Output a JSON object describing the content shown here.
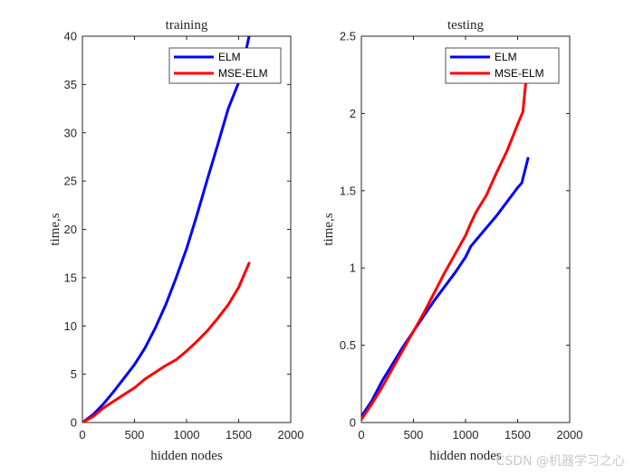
{
  "chart_data": [
    {
      "type": "line",
      "title": "training",
      "xlabel": "hidden nodes",
      "ylabel": "time,s",
      "xlim": [
        0,
        2000
      ],
      "ylim": [
        0,
        40
      ],
      "xticks": [
        "0",
        "500",
        "1000",
        "1500",
        "2000"
      ],
      "yticks": [
        "0",
        "5",
        "10",
        "15",
        "20",
        "25",
        "30",
        "35",
        "40"
      ],
      "legend_position": "top-right",
      "series": [
        {
          "name": "ELM",
          "color": "#0000ff",
          "x": [
            0,
            100,
            200,
            300,
            400,
            500,
            600,
            700,
            800,
            900,
            1000,
            1100,
            1200,
            1300,
            1400,
            1500,
            1550,
            1600
          ],
          "y": [
            0,
            0.8,
            1.9,
            3.2,
            4.6,
            6.0,
            7.7,
            9.8,
            12.2,
            15.0,
            18.0,
            21.5,
            25.2,
            28.8,
            32.5,
            35.2,
            37.5,
            40.0
          ]
        },
        {
          "name": "MSE-ELM",
          "color": "#ff0000",
          "x": [
            0,
            100,
            200,
            300,
            400,
            500,
            600,
            700,
            800,
            900,
            1000,
            1100,
            1200,
            1300,
            1400,
            1500,
            1600
          ],
          "y": [
            0,
            0.6,
            1.5,
            2.2,
            2.9,
            3.6,
            4.5,
            5.2,
            5.9,
            6.5,
            7.4,
            8.4,
            9.5,
            10.8,
            12.2,
            14.0,
            16.5
          ]
        }
      ]
    },
    {
      "type": "line",
      "title": "testing",
      "xlabel": "hidden nodes",
      "ylabel": "time,s",
      "xlim": [
        0,
        2000
      ],
      "ylim": [
        0,
        2.5
      ],
      "xticks": [
        "0",
        "500",
        "1000",
        "1500",
        "2000"
      ],
      "yticks": [
        "0",
        "0.5",
        "1",
        "1.5",
        "2",
        "2.5"
      ],
      "legend_position": "top-right",
      "series": [
        {
          "name": "ELM",
          "color": "#0000ff",
          "x": [
            0,
            100,
            200,
            300,
            400,
            500,
            600,
            700,
            800,
            900,
            1000,
            1050,
            1100,
            1200,
            1300,
            1400,
            1500,
            1540,
            1600
          ],
          "y": [
            0.04,
            0.14,
            0.27,
            0.38,
            0.49,
            0.59,
            0.69,
            0.79,
            0.88,
            0.97,
            1.07,
            1.14,
            1.18,
            1.26,
            1.34,
            1.43,
            1.52,
            1.55,
            1.71
          ]
        },
        {
          "name": "MSE-ELM",
          "color": "#ff0000",
          "x": [
            0,
            100,
            200,
            300,
            400,
            500,
            600,
            700,
            800,
            900,
            1000,
            1050,
            1100,
            1200,
            1300,
            1400,
            1500,
            1550,
            1600
          ],
          "y": [
            0.02,
            0.12,
            0.23,
            0.35,
            0.47,
            0.59,
            0.71,
            0.84,
            0.97,
            1.09,
            1.21,
            1.29,
            1.36,
            1.47,
            1.62,
            1.76,
            1.93,
            2.01,
            2.35
          ]
        }
      ]
    }
  ],
  "watermark": "CSDN @机器学习之心"
}
